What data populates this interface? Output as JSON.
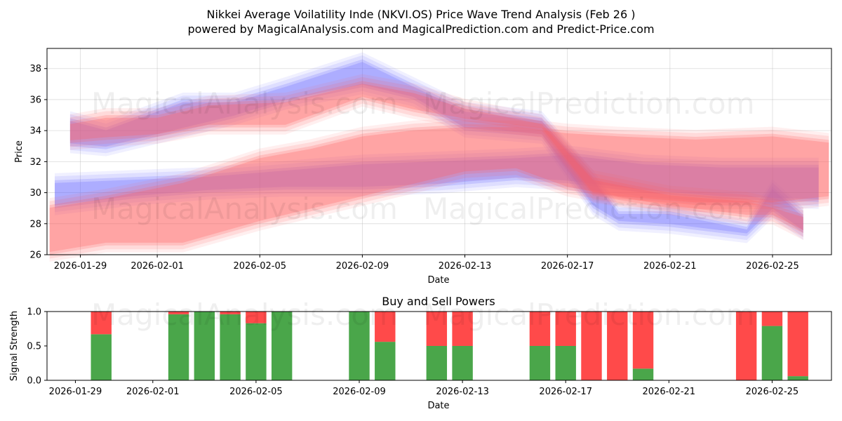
{
  "header": {
    "title_line1": "Nikkei Average Voilatility Inde (NKVI.OS) Price Wave Trend Analysis (Feb 26 )",
    "title_line2": "powered by MagicalAnalysis.com and MagicalPrediction.com and Predict-Price.com"
  },
  "watermarks": [
    "MagicalAnalysis.com",
    "MagicalPrediction.com"
  ],
  "colors": {
    "blue_band": "#6f6fff",
    "red_band": "#ff5f5f",
    "buy": "#4aa64a",
    "sell": "#ff4a4a"
  },
  "chart_data": [
    {
      "type": "area",
      "title": "",
      "xlabel": "Date",
      "ylabel": "Price",
      "ylim": [
        26,
        39.3
      ],
      "yticks": [
        26,
        28,
        30,
        32,
        34,
        36,
        38
      ],
      "xticks": [
        "2026-01-29",
        "2026-02-01",
        "2026-02-05",
        "2026-02-09",
        "2026-02-13",
        "2026-02-17",
        "2026-02-21",
        "2026-02-25"
      ],
      "xtick_days": [
        0,
        3,
        7,
        11,
        15,
        19,
        23,
        27
      ],
      "xlim_days": [
        -1.3,
        29.3
      ],
      "series": [
        {
          "name": "blue wave (upper)",
          "color": "blue",
          "x": [
            -0.4,
            1,
            4,
            6,
            8,
            11,
            13,
            15,
            18,
            20,
            21,
            23,
            26,
            27,
            28.2
          ],
          "low": [
            33.0,
            32.8,
            34.0,
            34.8,
            35.8,
            36.8,
            36.0,
            34.0,
            33.6,
            29.0,
            28.0,
            27.8,
            27.2,
            28.8,
            27.4
          ],
          "high": [
            34.8,
            34.2,
            36.0,
            36.0,
            37.0,
            38.6,
            37.0,
            35.4,
            34.8,
            31.0,
            28.8,
            28.8,
            27.8,
            30.4,
            28.6
          ]
        },
        {
          "name": "blue wave (lower)",
          "color": "blue",
          "x": [
            -1,
            2,
            5,
            8,
            11,
            14,
            17,
            19,
            22,
            25,
            28.8
          ],
          "low": [
            29.0,
            29.6,
            30.0,
            30.2,
            30.2,
            30.4,
            30.8,
            30.6,
            30.0,
            29.6,
            29.4
          ],
          "high": [
            30.8,
            31.0,
            31.2,
            31.6,
            32.0,
            32.2,
            32.4,
            32.6,
            32.0,
            31.8,
            31.8
          ]
        },
        {
          "name": "red wave (upper)",
          "color": "red",
          "x": [
            -0.4,
            1,
            3,
            5,
            8,
            11,
            13,
            15,
            18,
            20,
            23,
            26,
            27,
            28.2
          ],
          "low": [
            33.2,
            33.4,
            33.6,
            34.2,
            34.2,
            36.0,
            35.2,
            34.6,
            34.0,
            29.8,
            29.0,
            28.4,
            28.4,
            27.4
          ],
          "high": [
            34.6,
            35.0,
            35.0,
            35.8,
            36.0,
            37.2,
            36.6,
            35.6,
            34.6,
            31.0,
            30.0,
            29.6,
            29.2,
            28.6
          ]
        },
        {
          "name": "red wave (lower)",
          "color": "red",
          "x": [
            -1.2,
            1,
            4,
            7,
            9,
            11,
            13,
            15,
            17,
            19,
            21,
            24,
            27,
            29.2
          ],
          "low": [
            26.0,
            26.6,
            26.6,
            28.0,
            28.8,
            29.6,
            30.4,
            31.2,
            31.4,
            30.2,
            29.6,
            29.2,
            29.2,
            29.6
          ],
          "high": [
            29.2,
            29.8,
            30.8,
            32.4,
            33.0,
            33.8,
            34.2,
            34.4,
            34.4,
            34.0,
            33.8,
            33.6,
            33.8,
            33.4
          ]
        }
      ]
    },
    {
      "type": "bar",
      "title": "Buy and Sell Powers",
      "xlabel": "Date",
      "ylabel": "Signal Strength",
      "ylim": [
        0,
        1
      ],
      "yticks": [
        "0.0",
        "0.5",
        "1.0"
      ],
      "xticks": [
        "2026-01-29",
        "2026-02-01",
        "2026-02-05",
        "2026-02-09",
        "2026-02-13",
        "2026-02-17",
        "2026-02-21",
        "2026-02-25"
      ],
      "xtick_days": [
        0,
        3,
        7,
        11,
        15,
        19,
        23,
        27
      ],
      "xlim_days": [
        -1.1,
        29.3
      ],
      "categories": [
        "2026-01-30",
        "2026-02-02",
        "2026-02-03",
        "2026-02-04",
        "2026-02-05",
        "2026-02-06",
        "2026-02-09",
        "2026-02-10",
        "2026-02-12",
        "2026-02-13",
        "2026-02-16",
        "2026-02-17",
        "2026-02-18",
        "2026-02-19",
        "2026-02-20",
        "2026-02-24",
        "2026-02-25",
        "2026-02-26"
      ],
      "days": [
        1,
        4,
        5,
        6,
        7,
        8,
        11,
        12,
        14,
        15,
        18,
        19,
        20,
        21,
        22,
        26,
        27,
        28
      ],
      "series": [
        {
          "name": "Buy",
          "color": "green",
          "values": [
            0.67,
            0.96,
            1.0,
            0.96,
            0.83,
            1.0,
            1.0,
            0.56,
            0.5,
            0.5,
            0.5,
            0.5,
            0.0,
            0.0,
            0.17,
            0.0,
            0.79,
            0.06
          ]
        },
        {
          "name": "Sell",
          "color": "red",
          "values": [
            0.33,
            0.04,
            0.0,
            0.04,
            0.17,
            0.0,
            0.0,
            0.44,
            0.5,
            0.5,
            0.5,
            0.5,
            1.0,
            1.0,
            0.83,
            1.0,
            0.21,
            0.94
          ]
        }
      ]
    }
  ]
}
